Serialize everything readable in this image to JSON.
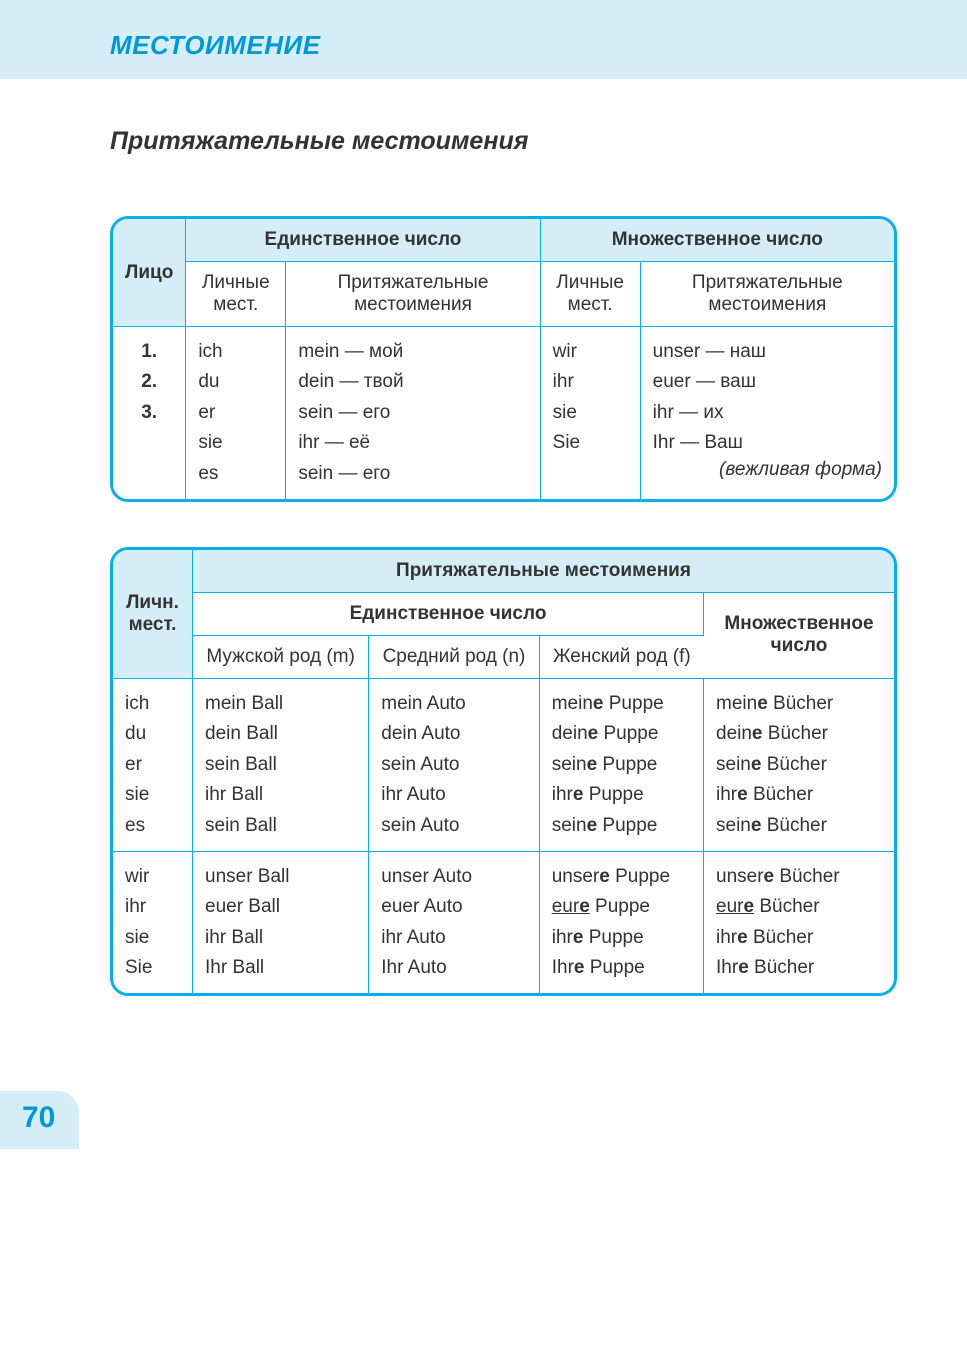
{
  "colors": {
    "accent": "#06b0e6",
    "header_bg": "#d4edf7",
    "text": "#333333",
    "page_bg": "#ffffff"
  },
  "header": {
    "title": "МЕСТОИМЕНИЕ"
  },
  "subtitle": "Притяжательные местоимения",
  "table1": {
    "head": {
      "person": "Лицо",
      "singular": "Единственное число",
      "plural": "Множественное число",
      "personal": "Личные мест.",
      "possessive": "Притяжательные местоимения"
    },
    "persons": "1.\n2.\n3.",
    "sg_personal": "ich\ndu\ner\nsie\nes",
    "sg_possessive": "mein — мой\ndein — твой\nsein — его\nihr — её\nsein — его",
    "pl_personal": "wir\nihr\nsie\nSie",
    "pl_possessive_lines": [
      "unser — наш",
      "euer — ваш",
      "ihr — их",
      "Ihr — Ваш"
    ],
    "polite_note": "(вежливая форма)"
  },
  "table2": {
    "head": {
      "personal_short": "Личн. мест.",
      "possessive": "Притяжательные местоимения",
      "singular": "Единственное число",
      "plural": "Множественное число",
      "masc": "Мужской род (m)",
      "neut": "Средний род (n)",
      "fem": "Женский род (f)"
    },
    "groupA": {
      "pron": [
        "ich",
        "du",
        "er",
        "sie",
        "es"
      ],
      "masc": [
        "mein Ball",
        "dein Ball",
        "sein Ball",
        "ihr Ball",
        "sein Ball"
      ],
      "neut": [
        "mein Auto",
        "dein Auto",
        "sein Auto",
        "ihr Auto",
        "sein Auto"
      ],
      "fem": [
        [
          "mein",
          "e",
          " Puppe"
        ],
        [
          "dein",
          "e",
          " Puppe"
        ],
        [
          "sein",
          "e",
          " Puppe"
        ],
        [
          "ihr",
          "e",
          " Puppe"
        ],
        [
          "sein",
          "e",
          " Puppe"
        ]
      ],
      "plur": [
        [
          "mein",
          "e",
          " Bücher"
        ],
        [
          "dein",
          "e",
          " Bücher"
        ],
        [
          "sein",
          "e",
          " Bücher"
        ],
        [
          "ihr",
          "e",
          " Bücher"
        ],
        [
          "sein",
          "e",
          " Bücher"
        ]
      ]
    },
    "groupB": {
      "pron": [
        "wir",
        "ihr",
        "sie",
        "Sie"
      ],
      "masc": [
        "unser Ball",
        "euer Ball",
        "ihr Ball",
        "Ihr Ball"
      ],
      "neut": [
        "unser Auto",
        "euer Auto",
        "ihr Auto",
        "Ihr Auto"
      ],
      "fem": [
        [
          "unser",
          "e",
          " Puppe"
        ],
        [
          "eur",
          "e",
          " Puppe",
          "u"
        ],
        [
          "ihr",
          "e",
          " Puppe"
        ],
        [
          "Ihr",
          "e",
          " Puppe"
        ]
      ],
      "plur": [
        [
          "unser",
          "e",
          " Bücher"
        ],
        [
          "eur",
          "e",
          " Bücher",
          "u"
        ],
        [
          "ihr",
          "e",
          " Bücher"
        ],
        [
          "Ihr",
          "e",
          " Bücher"
        ]
      ]
    }
  },
  "page_number": "70"
}
